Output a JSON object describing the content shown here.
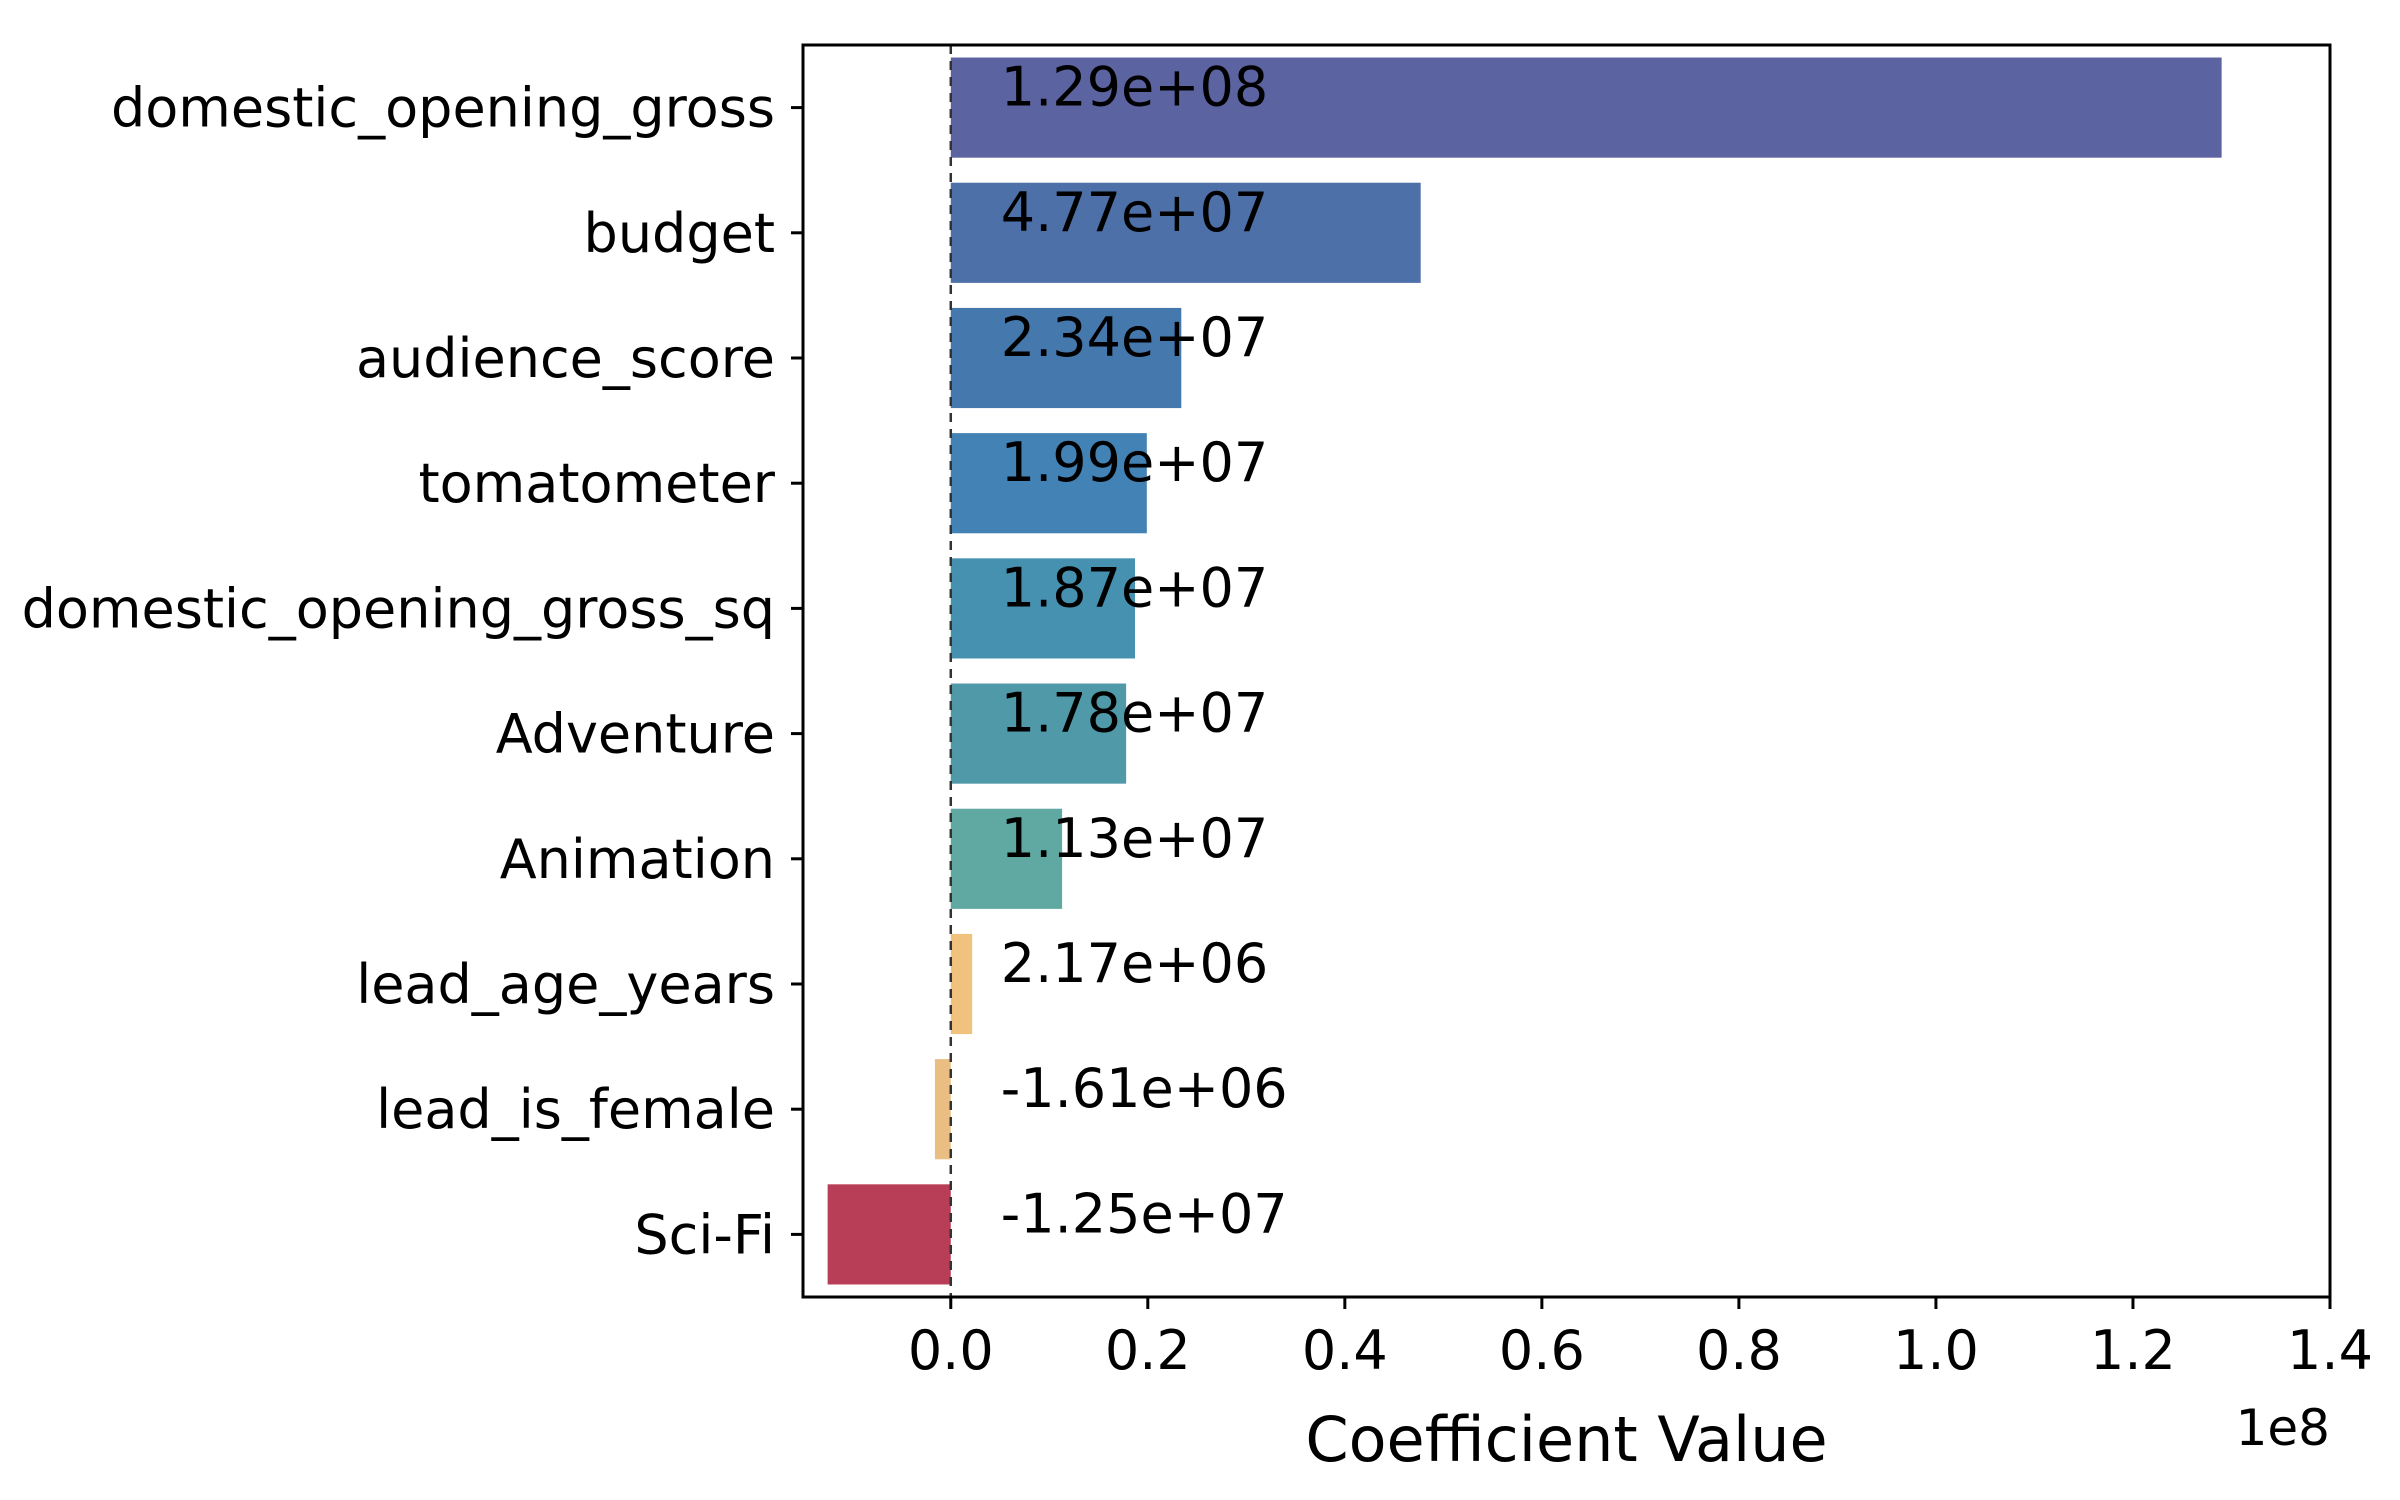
{
  "chart_data": {
    "type": "bar",
    "orientation": "horizontal",
    "categories": [
      "domestic_opening_gross",
      "budget",
      "audience_score",
      "tomatometer",
      "domestic_opening_gross_sq",
      "Adventure",
      "Animation",
      "lead_age_years",
      "lead_is_female",
      "Sci-Fi"
    ],
    "values": [
      129000000,
      47700000,
      23400000,
      19900000,
      18700000,
      17800000,
      11300000,
      2170000,
      -1610000,
      -12500000
    ],
    "data_labels": [
      "1.29e+08",
      "4.77e+07",
      "2.34e+07",
      "1.99e+07",
      "1.87e+07",
      "1.78e+07",
      "1.13e+07",
      "2.17e+06",
      "-1.61e+06",
      "-1.25e+07"
    ],
    "colors": [
      "#5b63a0",
      "#4e70a8",
      "#4579ad",
      "#4282b5",
      "#4791b0",
      "#5099a8",
      "#5fa9a2",
      "#f1c17e",
      "#eabd82",
      "#b83e57"
    ],
    "xlabel": "Coefficient Value",
    "x_offset_label": "1e8",
    "x_ticks": [
      0.0,
      0.2,
      0.4,
      0.6,
      0.8,
      1.0,
      1.2,
      1.4
    ],
    "x_tick_labels": [
      "0.0",
      "0.2",
      "0.4",
      "0.6",
      "0.8",
      "1.0",
      "1.2",
      "1.4"
    ],
    "x_scale": 100000000,
    "xlim": [
      -15000000,
      140000000
    ],
    "zero_line": "dashed",
    "grid": false,
    "legend": "none"
  }
}
